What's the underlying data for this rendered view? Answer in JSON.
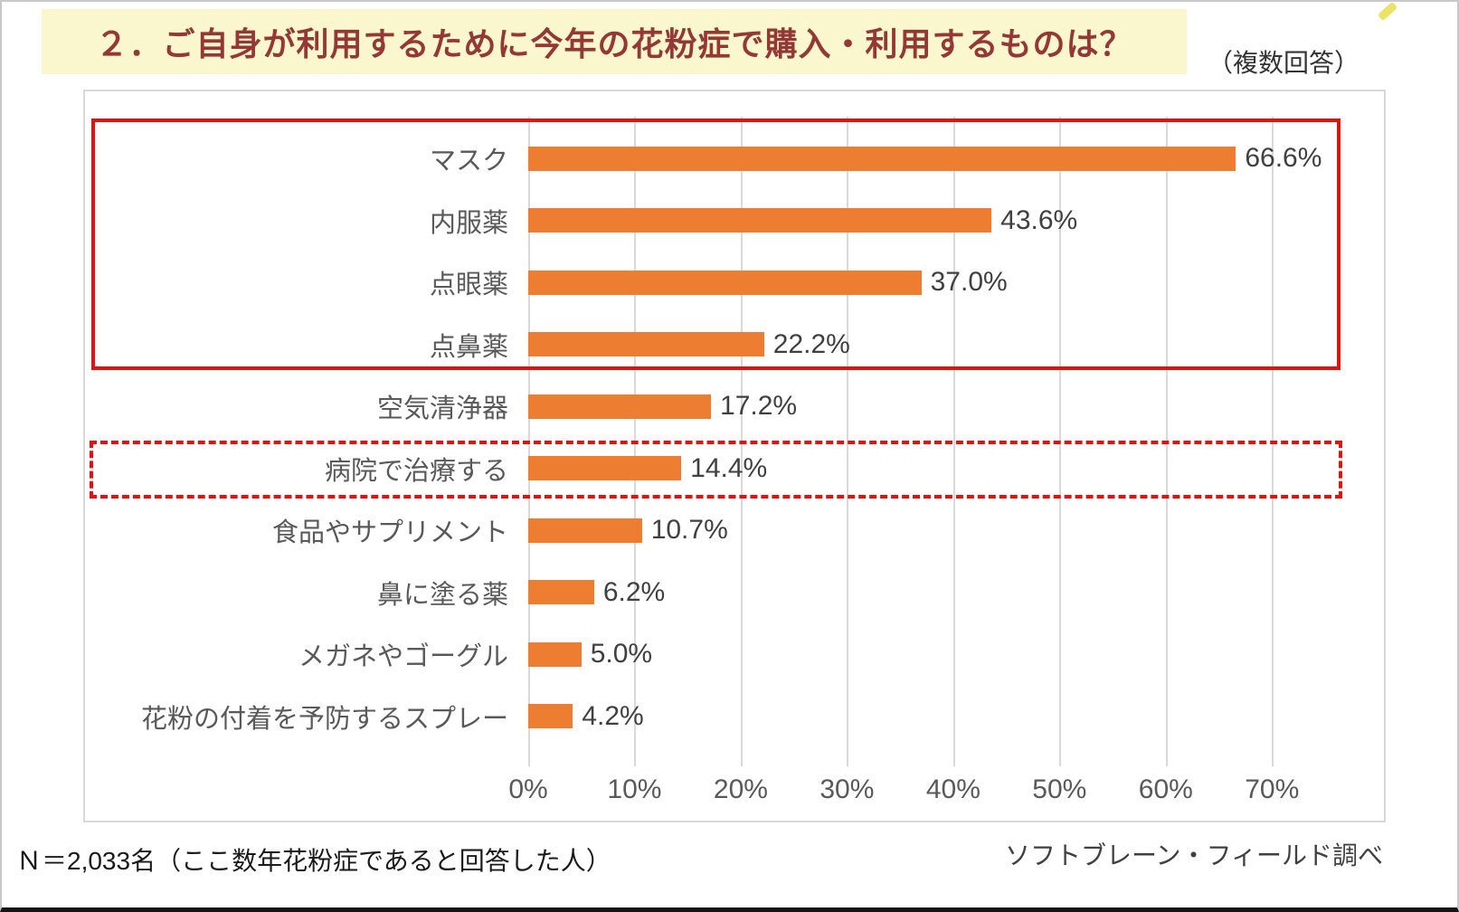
{
  "header": {
    "title": "２．ご自身が利用するために今年の花粉症で購入・利用するものは？",
    "note": "（複数回答）"
  },
  "footer": {
    "left": "Ｎ＝2,033名（ここ数年花粉症であると回答した人）",
    "right": "ソフトブレーン・フィールド調べ"
  },
  "colors": {
    "bar": "#ed7d31",
    "title_background": "#faf7cf",
    "title_text": "#953735",
    "highlight_red": "#e8100c",
    "gridline": "#d9d9d9",
    "axis_text": "#595959",
    "value_text": "#404040"
  },
  "chart_data": {
    "type": "bar",
    "orientation": "horizontal",
    "title": "２．ご自身が利用するために今年の花粉症で購入・利用するものは？",
    "subtitle": "（複数回答）",
    "categories": [
      "マスク",
      "内服薬",
      "点眼薬",
      "点鼻薬",
      "空気清浄器",
      "病院で治療する",
      "食品やサプリメント",
      "鼻に塗る薬",
      "メガネやゴーグル",
      "花粉の付着を予防するスプレー"
    ],
    "values": [
      66.6,
      43.6,
      37.0,
      22.2,
      17.2,
      14.4,
      10.7,
      6.2,
      5.0,
      4.2
    ],
    "value_labels": [
      "66.6%",
      "43.6%",
      "37.0%",
      "22.2%",
      "17.2%",
      "14.4%",
      "10.7%",
      "6.2%",
      "5.0%",
      "4.2%"
    ],
    "xticks": [
      0,
      10,
      20,
      30,
      40,
      50,
      60,
      70
    ],
    "xtick_labels": [
      "0%",
      "10%",
      "20%",
      "30%",
      "40%",
      "50%",
      "60%",
      "70%"
    ],
    "xlim": [
      0,
      70
    ],
    "plot_extent": 79,
    "grid": true,
    "legend": "none",
    "bar_color": "#ed7d31",
    "highlights": [
      {
        "style": "solid",
        "description": "red solid box around top 4 items",
        "row_start": 0,
        "row_end": 3
      },
      {
        "style": "dashed",
        "description": "red dashed box around 病院で治療する",
        "row_start": 5,
        "row_end": 5
      }
    ]
  }
}
